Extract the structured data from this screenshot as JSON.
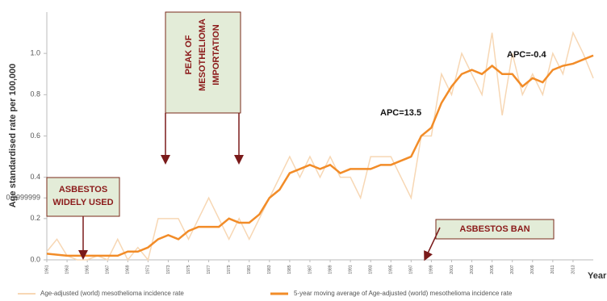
{
  "chart_data": {
    "type": "line",
    "y_label": "Age standardised rate per 100,000",
    "x_label": "Year",
    "x": [
      1961,
      1962,
      1963,
      1964,
      1965,
      1966,
      1967,
      1968,
      1969,
      1970,
      1971,
      1972,
      1973,
      1974,
      1975,
      1976,
      1977,
      1978,
      1979,
      1980,
      1981,
      1982,
      1983,
      1984,
      1985,
      1986,
      1987,
      1988,
      1989,
      1990,
      1991,
      1992,
      1993,
      1994,
      1995,
      1996,
      1997,
      1998,
      1999,
      2000,
      2001,
      2002,
      2003,
      2004,
      2005,
      2006,
      2007,
      2008,
      2009,
      2010,
      2011,
      2012,
      2013,
      2014,
      2015
    ],
    "series": [
      {
        "name": "Age-adjusted (world) mesothelioma incidence rate",
        "color": "#f7d7b4",
        "values": [
          0.04,
          0.1,
          0.02,
          0.0,
          0.0,
          0.02,
          0.0,
          0.1,
          0.0,
          0.06,
          0.0,
          0.2,
          0.2,
          0.2,
          0.1,
          0.2,
          0.3,
          0.2,
          0.1,
          0.2,
          0.1,
          0.2,
          0.3,
          0.4,
          0.5,
          0.4,
          0.5,
          0.4,
          0.5,
          0.4,
          0.4,
          0.3,
          0.5,
          0.5,
          0.5,
          0.4,
          0.3,
          0.6,
          0.6,
          0.9,
          0.8,
          1.0,
          0.9,
          0.8,
          1.1,
          0.7,
          1.0,
          0.8,
          0.9,
          0.8,
          1.0,
          0.9,
          1.1,
          1.0,
          0.88
        ]
      },
      {
        "name": "5-year moving average of Age-adjusted (world) mesothelioma incidence rate",
        "color": "#f28c28",
        "values": [
          0.03,
          0.025,
          0.02,
          0.02,
          0.02,
          0.02,
          0.02,
          0.02,
          0.04,
          0.04,
          0.06,
          0.1,
          0.12,
          0.1,
          0.14,
          0.16,
          0.16,
          0.16,
          0.2,
          0.18,
          0.18,
          0.22,
          0.3,
          0.34,
          0.42,
          0.44,
          0.46,
          0.44,
          0.46,
          0.42,
          0.44,
          0.44,
          0.44,
          0.46,
          0.46,
          0.48,
          0.5,
          0.6,
          0.64,
          0.76,
          0.84,
          0.9,
          0.92,
          0.9,
          0.94,
          0.9,
          0.9,
          0.84,
          0.88,
          0.86,
          0.92,
          0.94,
          0.95,
          0.97,
          0.99
        ]
      }
    ],
    "xlim": [
      1961,
      2015
    ],
    "xticks": [
      1961,
      1963,
      1965,
      1967,
      1969,
      1971,
      1973,
      1975,
      1977,
      1979,
      1981,
      1983,
      1985,
      1987,
      1989,
      1991,
      1993,
      1995,
      1997,
      1999,
      2001,
      2003,
      2005,
      2007,
      2009,
      2011,
      2013
    ],
    "ylim": [
      0,
      1.2
    ],
    "yticks": [
      {
        "value": 0,
        "label": "0.0"
      },
      0.2,
      0.4,
      0.6,
      0.8,
      {
        "value": 1,
        "label": "1.0"
      },
      0.2999999
    ],
    "annotations": {
      "widely_used": [
        "ASBESTOS",
        "WIDELY USED"
      ],
      "peak": [
        "PEAK OF",
        "MESOTHELIOMA",
        "IMPORTATION"
      ],
      "ban": "ASBESTOS BAN",
      "apc_rise": "APC=13.5",
      "apc_recent": "APC=-0.4"
    }
  }
}
